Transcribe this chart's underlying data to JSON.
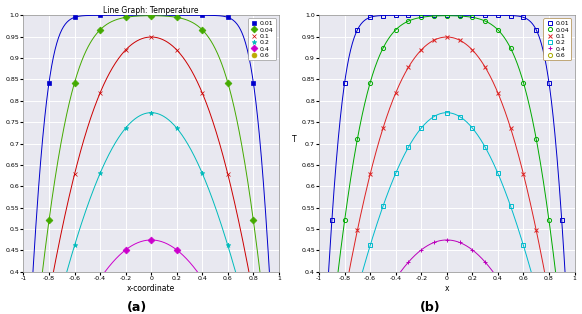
{
  "title_a": "Line Graph: Temperature",
  "xlabel_a": "x-coordinate",
  "xlabel_b": "x",
  "ylabel_b": "T",
  "legend_labels": [
    "0.01",
    "0.04",
    "0.1",
    "0.2",
    "0.4",
    "0.6"
  ],
  "legend_values": [
    0.01,
    0.04,
    0.1,
    0.2,
    0.4,
    0.6
  ],
  "colors_a": [
    "#0000cc",
    "#44aa00",
    "#cc0000",
    "#00bbbb",
    "#cc00cc",
    "#bbaa00"
  ],
  "colors_b": [
    "#0000cc",
    "#00aa00",
    "#dd2222",
    "#00bbcc",
    "#bb00bb",
    "#aaaa00"
  ],
  "markers_a": [
    "s",
    "D",
    "x",
    "*",
    "D",
    "o"
  ],
  "markers_b": [
    "s",
    "o",
    "x",
    "s",
    "+",
    "o"
  ],
  "xlim": [
    -1,
    1
  ],
  "ylim": [
    0.4,
    1.0
  ],
  "xticks": [
    -1,
    -0.8,
    -0.6,
    -0.4,
    -0.2,
    0,
    0.2,
    0.4,
    0.6,
    0.8,
    1
  ],
  "yticks": [
    0.4,
    0.45,
    0.5,
    0.55,
    0.6,
    0.65,
    0.7,
    0.75,
    0.8,
    0.85,
    0.9,
    0.95,
    1.0
  ],
  "bg_color": "#e8e8f0",
  "grid_color": "#ffffff",
  "n_terms": 50
}
